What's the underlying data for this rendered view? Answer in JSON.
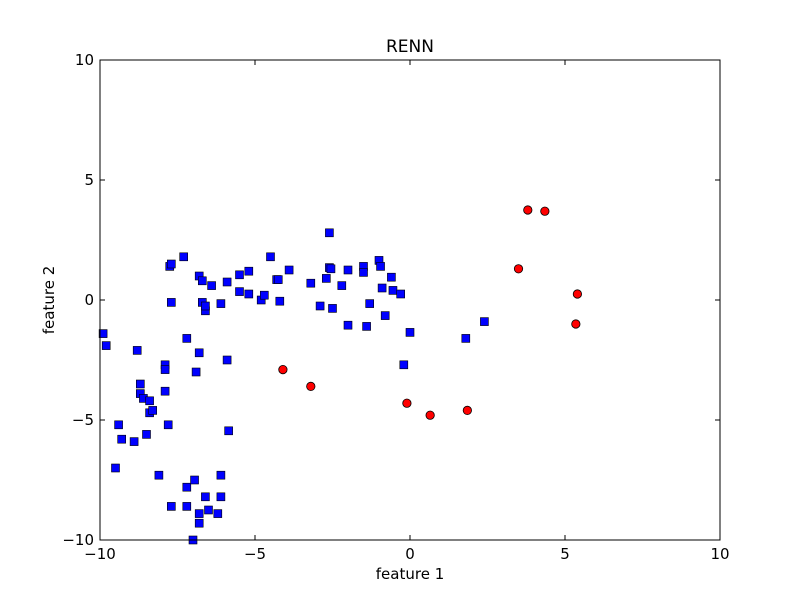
{
  "chart_data": {
    "type": "scatter",
    "title": "RENN",
    "xlabel": "feature 1",
    "ylabel": "feature 2",
    "xlim": [
      -10,
      10
    ],
    "ylim": [
      -10,
      10
    ],
    "x_ticks": [
      -10,
      -5,
      0,
      5,
      10
    ],
    "y_ticks": [
      -10,
      -5,
      0,
      5,
      10
    ],
    "x_tick_labels": [
      "−10",
      "−5",
      "0",
      "5",
      "10"
    ],
    "y_tick_labels": [
      "−10",
      "−5",
      "0",
      "5",
      "10"
    ],
    "grid": false,
    "series": [
      {
        "marker": "square",
        "color": "#0000ff",
        "points": [
          [
            -9.9,
            -1.4
          ],
          [
            -9.8,
            -1.9
          ],
          [
            -9.5,
            -7.0
          ],
          [
            -9.4,
            -5.2
          ],
          [
            -9.3,
            -5.8
          ],
          [
            -8.9,
            -5.9
          ],
          [
            -8.8,
            -2.1
          ],
          [
            -8.7,
            -3.9
          ],
          [
            -8.7,
            -3.5
          ],
          [
            -8.6,
            -4.1
          ],
          [
            -8.5,
            -5.6
          ],
          [
            -8.4,
            -4.7
          ],
          [
            -8.4,
            -4.2
          ],
          [
            -8.3,
            -4.6
          ],
          [
            -8.1,
            -7.3
          ],
          [
            -7.9,
            -2.7
          ],
          [
            -7.9,
            -2.9
          ],
          [
            -7.9,
            -3.8
          ],
          [
            -7.8,
            -5.2
          ],
          [
            -7.75,
            1.4
          ],
          [
            -7.7,
            1.5
          ],
          [
            -7.7,
            -0.1
          ],
          [
            -7.7,
            -8.6
          ],
          [
            -7.3,
            1.8
          ],
          [
            -7.2,
            -1.6
          ],
          [
            -7.2,
            -7.8
          ],
          [
            -7.2,
            -8.6
          ],
          [
            -7.0,
            -10.0
          ],
          [
            -6.95,
            -7.5
          ],
          [
            -6.9,
            -3.0
          ],
          [
            -6.8,
            1.0
          ],
          [
            -6.8,
            -2.2
          ],
          [
            -6.8,
            -8.9
          ],
          [
            -6.8,
            -9.3
          ],
          [
            -6.7,
            0.8
          ],
          [
            -6.7,
            -0.1
          ],
          [
            -6.6,
            -0.45
          ],
          [
            -6.6,
            -0.25
          ],
          [
            -6.6,
            -8.2
          ],
          [
            -6.5,
            -8.75
          ],
          [
            -6.4,
            0.6
          ],
          [
            -6.2,
            -8.9
          ],
          [
            -6.1,
            -0.15
          ],
          [
            -6.1,
            -7.3
          ],
          [
            -6.1,
            -8.2
          ],
          [
            -5.9,
            0.75
          ],
          [
            -5.9,
            -2.5
          ],
          [
            -5.85,
            -5.45
          ],
          [
            -5.5,
            1.05
          ],
          [
            -5.5,
            0.35
          ],
          [
            -5.2,
            1.2
          ],
          [
            -5.2,
            0.25
          ],
          [
            -4.8,
            0.0
          ],
          [
            -4.7,
            0.2
          ],
          [
            -4.5,
            1.8
          ],
          [
            -4.3,
            0.85
          ],
          [
            -4.25,
            0.85
          ],
          [
            -4.2,
            -0.05
          ],
          [
            -3.9,
            1.25
          ],
          [
            -3.2,
            0.7
          ],
          [
            -2.9,
            -0.25
          ],
          [
            -2.7,
            0.9
          ],
          [
            -2.6,
            1.35
          ],
          [
            -2.6,
            2.8
          ],
          [
            -2.55,
            1.3
          ],
          [
            -2.5,
            -0.35
          ],
          [
            -2.2,
            0.6
          ],
          [
            -2.0,
            1.25
          ],
          [
            -2.0,
            -1.05
          ],
          [
            -1.5,
            1.4
          ],
          [
            -1.5,
            1.15
          ],
          [
            -1.4,
            -1.1
          ],
          [
            -1.3,
            -0.15
          ],
          [
            -1.0,
            1.65
          ],
          [
            -0.95,
            1.4
          ],
          [
            -0.9,
            0.5
          ],
          [
            -0.8,
            -0.65
          ],
          [
            -0.6,
            0.95
          ],
          [
            -0.55,
            0.4
          ],
          [
            -0.3,
            0.25
          ],
          [
            -0.2,
            -2.7
          ],
          [
            0.0,
            -1.35
          ],
          [
            1.8,
            -1.6
          ],
          [
            2.4,
            -0.9
          ]
        ]
      },
      {
        "marker": "circle",
        "color": "#ff0000",
        "points": [
          [
            -4.1,
            -2.9
          ],
          [
            -3.2,
            -3.6
          ],
          [
            -0.1,
            -4.3
          ],
          [
            0.65,
            -4.8
          ],
          [
            1.85,
            -4.6
          ],
          [
            3.5,
            1.3
          ],
          [
            3.8,
            3.75
          ],
          [
            4.35,
            3.7
          ],
          [
            5.35,
            -1.0
          ],
          [
            5.4,
            0.25
          ]
        ]
      }
    ]
  }
}
